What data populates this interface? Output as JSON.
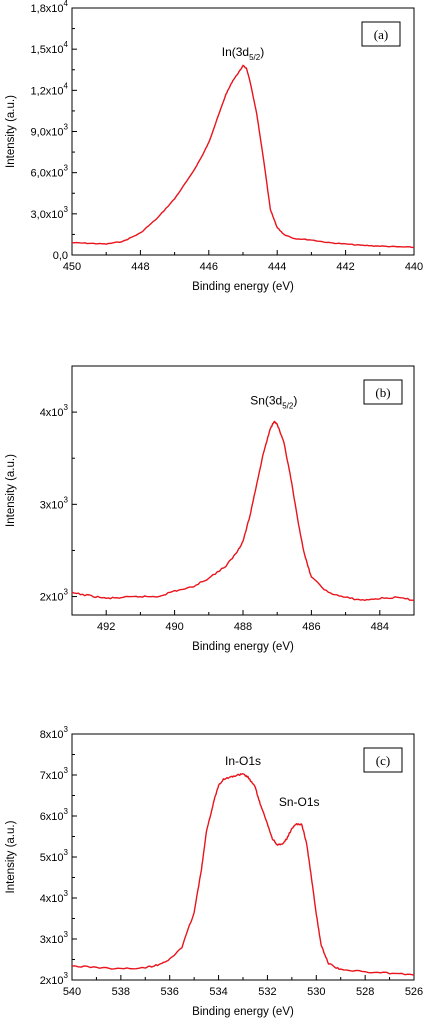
{
  "chart_data": [
    {
      "type": "line",
      "panel_label": "(a)",
      "xlabel": "Binding energy (eV)",
      "ylabel": "Intensity (a.u.)",
      "xlim": [
        450,
        440
      ],
      "ylim": [
        0,
        18000
      ],
      "x_ticks": [
        "450",
        "448",
        "446",
        "444",
        "442",
        "440"
      ],
      "y_ticks": [
        {
          "mantissa": "0,0",
          "exp": ""
        },
        {
          "mantissa": "3,0x10",
          "exp": "3"
        },
        {
          "mantissa": "6,0x10",
          "exp": "3"
        },
        {
          "mantissa": "9,0x10",
          "exp": "3"
        },
        {
          "mantissa": "1,2x10",
          "exp": "4"
        },
        {
          "mantissa": "1,5x10",
          "exp": "4"
        },
        {
          "mantissa": "1,8x10",
          "exp": "4"
        }
      ],
      "annotations": [
        {
          "base": "In(3d",
          "sub": "5/2",
          "tail": ")",
          "x": 445.0,
          "y": 14500
        }
      ],
      "series": [
        {
          "color": "#e8141c",
          "x": [
            450,
            449.5,
            449,
            448.5,
            448,
            447.5,
            447,
            446.5,
            446.2,
            446,
            445.8,
            445.5,
            445.3,
            445.1,
            445,
            444.9,
            444.8,
            444.6,
            444.4,
            444.2,
            444,
            443.8,
            443.5,
            443,
            442.5,
            442,
            441.5,
            441,
            440.5,
            440
          ],
          "y": [
            900,
            850,
            800,
            1000,
            1600,
            2700,
            4100,
            5900,
            7200,
            8200,
            9600,
            11700,
            12700,
            13400,
            13800,
            13600,
            12700,
            10300,
            7000,
            3300,
            2000,
            1500,
            1200,
            1100,
            900,
            800,
            700,
            650,
            600,
            560
          ]
        }
      ]
    },
    {
      "type": "line",
      "panel_label": "(b)",
      "xlabel": "Binding energy (eV)",
      "ylabel": "Intensity (a.u.)",
      "xlim": [
        493,
        483
      ],
      "ylim": [
        1800,
        4500
      ],
      "x_ticks": [
        "492",
        "490",
        "488",
        "486",
        "484"
      ],
      "y_ticks": [
        {
          "mantissa": "2x10",
          "exp": "3"
        },
        {
          "mantissa": "3x10",
          "exp": "3"
        },
        {
          "mantissa": "4x10",
          "exp": "3"
        }
      ],
      "annotations": [
        {
          "base": "Sn(3d",
          "sub": "5/2",
          "tail": ")",
          "x": 487.1,
          "y": 4080
        }
      ],
      "series": [
        {
          "color": "#e8141c",
          "x": [
            493,
            492.5,
            492,
            491.5,
            491,
            490.5,
            490,
            489.5,
            489,
            488.5,
            488.2,
            488,
            487.8,
            487.6,
            487.4,
            487.2,
            487.1,
            487,
            486.8,
            486.6,
            486.4,
            486.2,
            486,
            485.5,
            485,
            484.5,
            484,
            483.5,
            483
          ],
          "y": [
            2040,
            2010,
            1980,
            1990,
            2000,
            2000,
            2060,
            2100,
            2200,
            2330,
            2470,
            2600,
            2870,
            3220,
            3560,
            3820,
            3900,
            3870,
            3660,
            3280,
            2830,
            2450,
            2210,
            2040,
            1990,
            1960,
            1980,
            1990,
            1960
          ]
        }
      ]
    },
    {
      "type": "line",
      "panel_label": "(c)",
      "xlabel": "Binding energy (eV)",
      "ylabel": "Intensity (a.u.)",
      "xlim": [
        540,
        526
      ],
      "ylim": [
        2000,
        8000
      ],
      "x_ticks": [
        "540",
        "538",
        "536",
        "534",
        "532",
        "530",
        "528",
        "526"
      ],
      "y_ticks": [
        {
          "mantissa": "2x10",
          "exp": "3"
        },
        {
          "mantissa": "3x10",
          "exp": "3"
        },
        {
          "mantissa": "4x10",
          "exp": "3"
        },
        {
          "mantissa": "5x10",
          "exp": "3"
        },
        {
          "mantissa": "6x10",
          "exp": "3"
        },
        {
          "mantissa": "7x10",
          "exp": "3"
        },
        {
          "mantissa": "8x10",
          "exp": "3"
        }
      ],
      "annotations": [
        {
          "base": "In-O1s",
          "sub": "",
          "tail": "",
          "x": 533.0,
          "y": 7250
        },
        {
          "base": "Sn-O1s",
          "sub": "",
          "tail": "",
          "x": 530.7,
          "y": 6250
        }
      ],
      "series": [
        {
          "color": "#e8141c",
          "x": [
            540,
            539,
            538,
            537,
            536.5,
            536,
            535.5,
            535,
            534.7,
            534.5,
            534.2,
            534,
            533.8,
            533.5,
            533.2,
            533,
            532.8,
            532.5,
            532.3,
            532,
            531.8,
            531.6,
            531.4,
            531.2,
            531,
            530.8,
            530.6,
            530.4,
            530.2,
            530,
            529.8,
            529.5,
            529,
            528,
            527,
            526
          ],
          "y": [
            2340,
            2310,
            2270,
            2300,
            2370,
            2500,
            2800,
            3650,
            4700,
            5600,
            6350,
            6750,
            6900,
            6950,
            7000,
            7020,
            6950,
            6700,
            6300,
            5800,
            5450,
            5300,
            5300,
            5450,
            5700,
            5800,
            5800,
            5350,
            4500,
            3600,
            2850,
            2400,
            2250,
            2200,
            2170,
            2120
          ]
        }
      ]
    }
  ]
}
